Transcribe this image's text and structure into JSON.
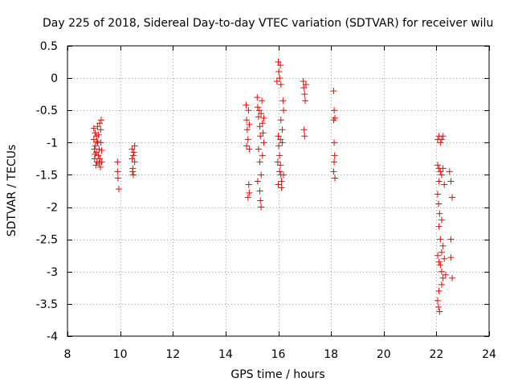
{
  "chart_data": {
    "type": "scatter",
    "title": "Day 225 of 2018, Sidereal Day-to-day VTEC variation (SDTVAR) for receiver wilu",
    "xlabel": "GPS time / hours",
    "ylabel": "SDTVAR / TECUs",
    "xlim": [
      8,
      24
    ],
    "ylim": [
      -4,
      0.5
    ],
    "xticks": [
      8,
      10,
      12,
      14,
      16,
      18,
      20,
      22,
      24
    ],
    "xtick_labels": [
      "8",
      "10",
      "12",
      "14",
      "16",
      "18",
      "20",
      "22",
      "24"
    ],
    "yticks": [
      0.5,
      0,
      -0.5,
      -1,
      -1.5,
      -2,
      -2.5,
      -3,
      -3.5,
      -4
    ],
    "ytick_labels": [
      "0.5",
      "0",
      "-0.5",
      "-1",
      "-1.5",
      "-2",
      "-2.5",
      "-3",
      "-3.5",
      "-4"
    ],
    "grid": true,
    "marker": "+",
    "marker_color": "#ff0000",
    "series": [
      {
        "name": "SDTVAR",
        "points": [
          [
            9.0,
            -0.78
          ],
          [
            9.0,
            -0.95
          ],
          [
            9.02,
            -1.1
          ],
          [
            9.03,
            -1.25
          ],
          [
            9.05,
            -0.85
          ],
          [
            9.06,
            -1.05
          ],
          [
            9.08,
            -1.35
          ],
          [
            9.1,
            -0.9
          ],
          [
            9.1,
            -1.15
          ],
          [
            9.12,
            -1.3
          ],
          [
            9.14,
            -0.75
          ],
          [
            9.15,
            -1.0
          ],
          [
            9.17,
            -1.2
          ],
          [
            9.18,
            -0.88
          ],
          [
            9.2,
            -1.1
          ],
          [
            9.22,
            -0.7
          ],
          [
            9.23,
            -1.25
          ],
          [
            9.25,
            -1.38
          ],
          [
            9.26,
            -0.8
          ],
          [
            9.27,
            -1.0
          ],
          [
            9.28,
            -0.65
          ],
          [
            9.3,
            -1.12
          ],
          [
            9.3,
            -1.3
          ],
          [
            9.05,
            -1.18
          ],
          [
            9.12,
            -0.98
          ],
          [
            9.2,
            -1.32
          ],
          [
            9.9,
            -1.3
          ],
          [
            9.9,
            -1.45
          ],
          [
            9.92,
            -1.55
          ],
          [
            9.95,
            -1.72
          ],
          [
            10.45,
            -1.1
          ],
          [
            10.45,
            -1.25
          ],
          [
            10.48,
            -1.4
          ],
          [
            10.5,
            -1.5
          ],
          [
            10.52,
            -1.15
          ],
          [
            10.55,
            -1.3
          ],
          [
            10.55,
            -1.05
          ],
          [
            10.5,
            -1.2
          ],
          [
            10.47,
            -1.45
          ],
          [
            14.78,
            -0.42
          ],
          [
            14.8,
            -0.65
          ],
          [
            14.82,
            -0.8
          ],
          [
            14.85,
            -0.95
          ],
          [
            14.8,
            -1.05
          ],
          [
            14.87,
            -0.5
          ],
          [
            14.9,
            -0.72
          ],
          [
            14.88,
            -1.65
          ],
          [
            14.9,
            -1.78
          ],
          [
            14.85,
            -1.85
          ],
          [
            14.9,
            -1.1
          ],
          [
            15.2,
            -0.3
          ],
          [
            15.22,
            -0.45
          ],
          [
            15.25,
            -0.6
          ],
          [
            15.3,
            -0.75
          ],
          [
            15.32,
            -0.9
          ],
          [
            15.35,
            -0.55
          ],
          [
            15.38,
            -0.35
          ],
          [
            15.4,
            -0.7
          ],
          [
            15.25,
            -1.1
          ],
          [
            15.3,
            -1.3
          ],
          [
            15.35,
            -1.5
          ],
          [
            15.22,
            -1.6
          ],
          [
            15.3,
            -1.75
          ],
          [
            15.32,
            -1.9
          ],
          [
            15.35,
            -2.0
          ],
          [
            15.4,
            -1.2
          ],
          [
            15.45,
            -0.62
          ],
          [
            15.45,
            -1.0
          ],
          [
            15.28,
            -0.5
          ],
          [
            15.42,
            -0.85
          ],
          [
            16.0,
            0.25
          ],
          [
            16.02,
            0.1
          ],
          [
            16.05,
            0.0
          ],
          [
            16.08,
            0.2
          ],
          [
            16.1,
            -0.1
          ],
          [
            15.95,
            -0.05
          ],
          [
            16.0,
            -0.9
          ],
          [
            16.02,
            -1.05
          ],
          [
            16.05,
            -1.2
          ],
          [
            16.08,
            -1.35
          ],
          [
            16.1,
            -1.5
          ],
          [
            16.12,
            -1.6
          ],
          [
            16.0,
            -1.65
          ],
          [
            16.05,
            -1.45
          ],
          [
            15.98,
            -1.3
          ],
          [
            16.15,
            -0.8
          ],
          [
            16.18,
            -0.35
          ],
          [
            16.2,
            -0.5
          ],
          [
            16.15,
            -1.0
          ],
          [
            16.2,
            -1.5
          ],
          [
            16.12,
            -1.7
          ],
          [
            16.1,
            -0.65
          ],
          [
            16.08,
            -0.95
          ],
          [
            16.95,
            -0.05
          ],
          [
            16.97,
            -0.15
          ],
          [
            17.0,
            -0.25
          ],
          [
            17.02,
            -0.35
          ],
          [
            17.05,
            -0.1
          ],
          [
            16.98,
            -0.8
          ],
          [
            17.0,
            -0.9
          ],
          [
            18.1,
            -0.2
          ],
          [
            18.12,
            -0.5
          ],
          [
            18.15,
            -0.62
          ],
          [
            18.1,
            -0.65
          ],
          [
            18.12,
            -1.0
          ],
          [
            18.14,
            -1.2
          ],
          [
            18.1,
            -1.45
          ],
          [
            18.15,
            -1.55
          ],
          [
            18.12,
            -1.3
          ],
          [
            22.05,
            -0.95
          ],
          [
            22.1,
            -0.9
          ],
          [
            22.15,
            -1.0
          ],
          [
            22.2,
            -0.95
          ],
          [
            22.25,
            -0.9
          ],
          [
            22.05,
            -1.35
          ],
          [
            22.1,
            -1.4
          ],
          [
            22.15,
            -1.45
          ],
          [
            22.2,
            -1.5
          ],
          [
            22.25,
            -1.4
          ],
          [
            22.1,
            -1.6
          ],
          [
            22.05,
            -1.8
          ],
          [
            22.08,
            -1.95
          ],
          [
            22.12,
            -2.1
          ],
          [
            22.1,
            -2.3
          ],
          [
            22.15,
            -2.5
          ],
          [
            22.2,
            -2.7
          ],
          [
            22.05,
            -2.75
          ],
          [
            22.1,
            -2.85
          ],
          [
            22.15,
            -2.9
          ],
          [
            22.2,
            -3.0
          ],
          [
            22.25,
            -3.1
          ],
          [
            22.1,
            -3.3
          ],
          [
            22.05,
            -3.45
          ],
          [
            22.08,
            -3.55
          ],
          [
            22.12,
            -3.62
          ],
          [
            22.2,
            -3.2
          ],
          [
            22.3,
            -2.8
          ],
          [
            22.35,
            -3.05
          ],
          [
            22.3,
            -1.65
          ],
          [
            22.2,
            -2.2
          ],
          [
            22.25,
            -2.6
          ],
          [
            22.55,
            -1.6
          ],
          [
            22.6,
            -1.85
          ],
          [
            22.55,
            -2.5
          ],
          [
            22.55,
            -2.78
          ],
          [
            22.6,
            -3.1
          ],
          [
            22.5,
            -1.45
          ]
        ]
      }
    ]
  }
}
